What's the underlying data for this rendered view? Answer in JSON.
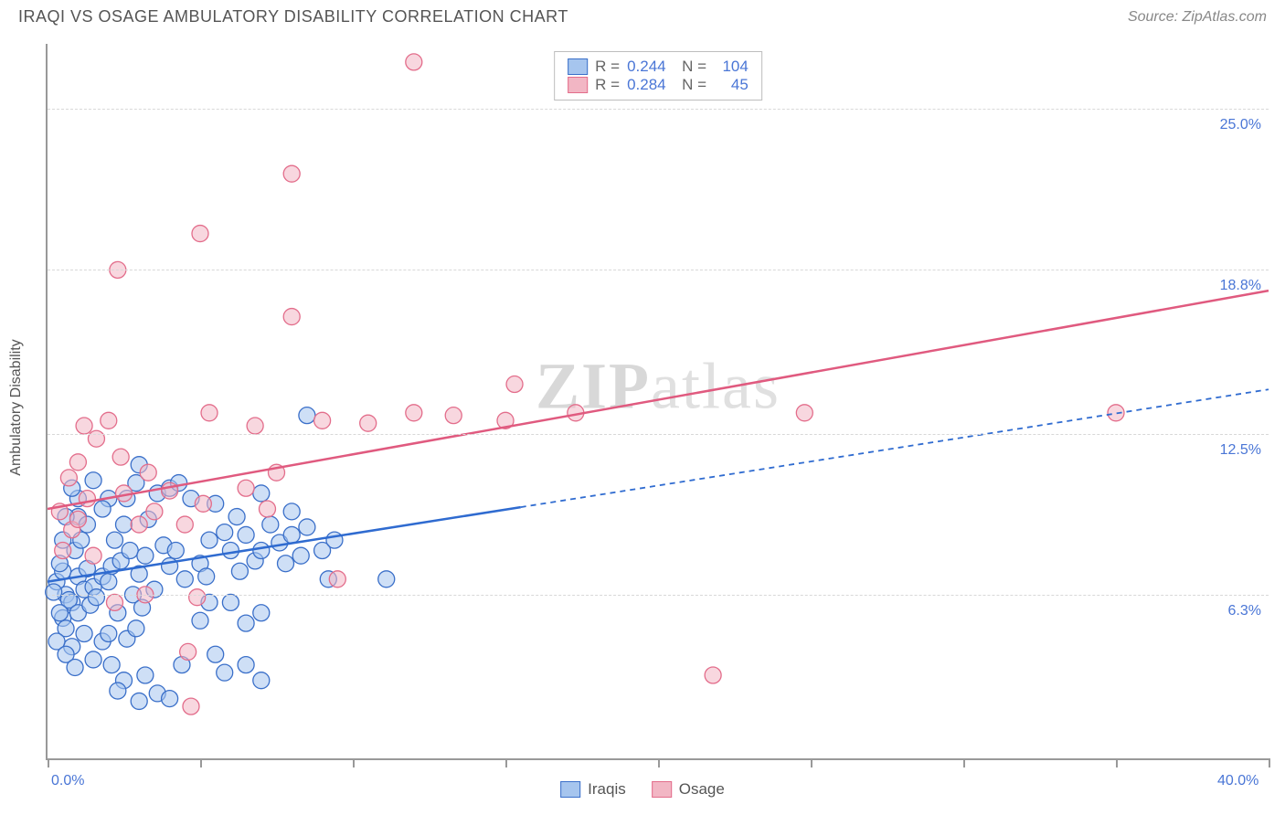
{
  "title": "IRAQI VS OSAGE AMBULATORY DISABILITY CORRELATION CHART",
  "source": "Source: ZipAtlas.com",
  "watermark": "ZIPatlas",
  "y_axis_title": "Ambulatory Disability",
  "chart": {
    "type": "scatter",
    "xlim": [
      0,
      40
    ],
    "ylim": [
      0,
      27.5
    ],
    "x_labels": [
      {
        "v": 0,
        "text": "0.0%"
      },
      {
        "v": 40,
        "text": "40.0%"
      }
    ],
    "x_ticks": [
      0,
      5,
      10,
      15,
      20,
      25,
      30,
      35,
      40
    ],
    "y_gridlines": [
      {
        "v": 6.3,
        "text": "6.3%"
      },
      {
        "v": 12.5,
        "text": "12.5%"
      },
      {
        "v": 18.8,
        "text": "18.8%"
      },
      {
        "v": 25.0,
        "text": "25.0%"
      }
    ],
    "marker_radius": 9,
    "marker_opacity": 0.55,
    "series": [
      {
        "name": "Iraqis",
        "fill": "#a6c5ee",
        "stroke": "#3a6fc9",
        "line_color": "#2f6bd0",
        "line_width": 2.5,
        "R": "0.244",
        "N": "104",
        "trend": {
          "x1": 0,
          "y1": 6.8,
          "x2": 40,
          "y2": 14.2,
          "solid_until_x": 15.5
        },
        "points": [
          [
            0.3,
            6.8
          ],
          [
            0.5,
            7.2
          ],
          [
            0.6,
            6.3
          ],
          [
            0.8,
            6.0
          ],
          [
            0.5,
            5.4
          ],
          [
            1.0,
            7.0
          ],
          [
            1.2,
            6.5
          ],
          [
            0.4,
            7.5
          ],
          [
            0.9,
            8.0
          ],
          [
            1.1,
            8.4
          ],
          [
            1.3,
            7.3
          ],
          [
            1.5,
            6.6
          ],
          [
            0.7,
            6.1
          ],
          [
            0.2,
            6.4
          ],
          [
            0.6,
            5.0
          ],
          [
            0.8,
            4.3
          ],
          [
            1.0,
            5.6
          ],
          [
            1.4,
            5.9
          ],
          [
            1.2,
            4.8
          ],
          [
            1.6,
            6.2
          ],
          [
            1.8,
            7.0
          ],
          [
            2.0,
            6.8
          ],
          [
            2.1,
            7.4
          ],
          [
            2.4,
            7.6
          ],
          [
            2.2,
            8.4
          ],
          [
            2.5,
            9.0
          ],
          [
            2.7,
            8.0
          ],
          [
            3.0,
            7.1
          ],
          [
            3.2,
            7.8
          ],
          [
            2.8,
            6.3
          ],
          [
            2.3,
            5.6
          ],
          [
            2.6,
            4.6
          ],
          [
            2.9,
            5.0
          ],
          [
            3.1,
            5.8
          ],
          [
            3.5,
            6.5
          ],
          [
            3.3,
            9.2
          ],
          [
            3.8,
            8.2
          ],
          [
            3.6,
            10.2
          ],
          [
            2.0,
            10.0
          ],
          [
            1.5,
            10.7
          ],
          [
            1.8,
            9.6
          ],
          [
            2.6,
            10.0
          ],
          [
            2.9,
            10.6
          ],
          [
            3.0,
            11.3
          ],
          [
            4.0,
            7.4
          ],
          [
            4.2,
            8.0
          ],
          [
            4.5,
            6.9
          ],
          [
            5.0,
            7.5
          ],
          [
            5.3,
            8.4
          ],
          [
            5.2,
            7.0
          ],
          [
            5.8,
            8.7
          ],
          [
            5.5,
            9.8
          ],
          [
            6.0,
            8.0
          ],
          [
            6.3,
            7.2
          ],
          [
            6.5,
            8.6
          ],
          [
            6.8,
            7.6
          ],
          [
            6.2,
            9.3
          ],
          [
            7.0,
            8.0
          ],
          [
            7.3,
            9.0
          ],
          [
            7.0,
            10.2
          ],
          [
            7.6,
            8.3
          ],
          [
            7.8,
            7.5
          ],
          [
            8.0,
            8.6
          ],
          [
            8.3,
            7.8
          ],
          [
            8.5,
            8.9
          ],
          [
            8.5,
            13.2
          ],
          [
            8.0,
            9.5
          ],
          [
            9.0,
            8.0
          ],
          [
            9.2,
            6.9
          ],
          [
            9.4,
            8.4
          ],
          [
            6.0,
            6.0
          ],
          [
            5.0,
            5.3
          ],
          [
            5.3,
            6.0
          ],
          [
            11.1,
            6.9
          ],
          [
            4.0,
            10.4
          ],
          [
            4.7,
            10.0
          ],
          [
            4.3,
            10.6
          ],
          [
            1.0,
            10.0
          ],
          [
            0.8,
            10.4
          ],
          [
            1.0,
            9.3
          ],
          [
            1.3,
            9.0
          ],
          [
            0.6,
            9.3
          ],
          [
            0.5,
            8.4
          ],
          [
            0.4,
            5.6
          ],
          [
            2.1,
            3.6
          ],
          [
            2.5,
            3.0
          ],
          [
            3.2,
            3.2
          ],
          [
            3.6,
            2.5
          ],
          [
            4.0,
            2.3
          ],
          [
            4.4,
            3.6
          ],
          [
            5.5,
            4.0
          ],
          [
            5.8,
            3.3
          ],
          [
            6.5,
            3.6
          ],
          [
            7.0,
            3.0
          ],
          [
            3.0,
            2.2
          ],
          [
            2.3,
            2.6
          ],
          [
            1.8,
            4.5
          ],
          [
            1.5,
            3.8
          ],
          [
            2.0,
            4.8
          ],
          [
            6.5,
            5.2
          ],
          [
            7.0,
            5.6
          ],
          [
            0.3,
            4.5
          ],
          [
            0.6,
            4.0
          ],
          [
            0.9,
            3.5
          ]
        ]
      },
      {
        "name": "Osage",
        "fill": "#f2b6c4",
        "stroke": "#e36d8b",
        "line_color": "#e05a7f",
        "line_width": 2.5,
        "R": "0.284",
        "N": "45",
        "trend": {
          "x1": 0,
          "y1": 9.6,
          "x2": 40,
          "y2": 18.0,
          "solid_until_x": 40
        },
        "points": [
          [
            0.5,
            8.0
          ],
          [
            0.8,
            8.8
          ],
          [
            1.0,
            9.2
          ],
          [
            1.3,
            10.0
          ],
          [
            1.5,
            7.8
          ],
          [
            0.7,
            10.8
          ],
          [
            0.4,
            9.5
          ],
          [
            1.0,
            11.4
          ],
          [
            1.2,
            12.8
          ],
          [
            1.6,
            12.3
          ],
          [
            2.0,
            13.0
          ],
          [
            2.4,
            11.6
          ],
          [
            2.5,
            10.2
          ],
          [
            3.0,
            9.0
          ],
          [
            3.3,
            11.0
          ],
          [
            3.5,
            9.5
          ],
          [
            4.0,
            10.3
          ],
          [
            4.5,
            9.0
          ],
          [
            5.1,
            9.8
          ],
          [
            5.3,
            13.3
          ],
          [
            6.5,
            10.4
          ],
          [
            6.8,
            12.8
          ],
          [
            7.2,
            9.6
          ],
          [
            7.5,
            11.0
          ],
          [
            9.0,
            13.0
          ],
          [
            10.5,
            12.9
          ],
          [
            12.0,
            13.3
          ],
          [
            12.0,
            26.8
          ],
          [
            13.3,
            13.2
          ],
          [
            15.3,
            14.4
          ],
          [
            15.0,
            13.0
          ],
          [
            17.3,
            13.3
          ],
          [
            24.8,
            13.3
          ],
          [
            35.0,
            13.3
          ],
          [
            2.3,
            18.8
          ],
          [
            5.0,
            20.2
          ],
          [
            8.0,
            22.5
          ],
          [
            8.0,
            17.0
          ],
          [
            4.6,
            4.1
          ],
          [
            4.9,
            6.2
          ],
          [
            3.2,
            6.3
          ],
          [
            2.2,
            6.0
          ],
          [
            4.7,
            2.0
          ],
          [
            21.8,
            3.2
          ],
          [
            9.5,
            6.9
          ]
        ]
      }
    ]
  }
}
